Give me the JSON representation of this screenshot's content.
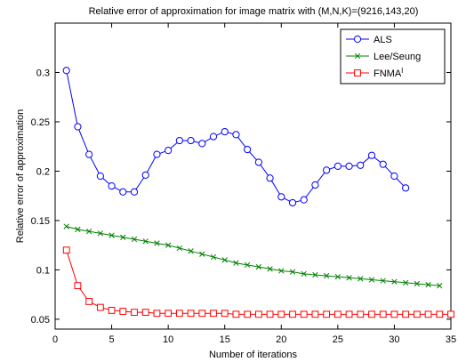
{
  "chart_data": {
    "type": "line",
    "title": "Relative error of approximation for image matrix with (M,N,K)=(9216,143,20)",
    "xlabel": "Number of iterations",
    "ylabel": "Relative error of approximation",
    "xlim": [
      0,
      35
    ],
    "ylim": [
      0.04,
      0.35
    ],
    "xticks": [
      0,
      5,
      10,
      15,
      20,
      25,
      30,
      35
    ],
    "yticks": [
      0.05,
      0.1,
      0.15,
      0.2,
      0.25,
      0.3
    ],
    "ytick_labels": [
      "0.05",
      "0.1",
      "0.15",
      "0.2",
      "0.25",
      "0.3"
    ],
    "grid": false,
    "legend_position": "top-right",
    "series": [
      {
        "name": "ALS",
        "color": "#0000ff",
        "marker": "circle",
        "x": [
          1,
          2,
          3,
          4,
          5,
          6,
          7,
          8,
          9,
          10,
          11,
          12,
          13,
          14,
          15,
          16,
          17,
          18,
          19,
          20,
          21,
          22,
          23,
          24,
          25,
          26,
          27,
          28,
          29,
          30,
          31
        ],
        "y": [
          0.302,
          0.245,
          0.217,
          0.195,
          0.185,
          0.179,
          0.179,
          0.196,
          0.217,
          0.221,
          0.231,
          0.231,
          0.228,
          0.235,
          0.24,
          0.237,
          0.222,
          0.209,
          0.193,
          0.174,
          0.168,
          0.171,
          0.186,
          0.201,
          0.205,
          0.205,
          0.206,
          0.216,
          0.207,
          0.195,
          0.183
        ]
      },
      {
        "name": "Lee/Seung",
        "color": "#008000",
        "marker": "x",
        "x": [
          1,
          2,
          3,
          4,
          5,
          6,
          7,
          8,
          9,
          10,
          11,
          12,
          13,
          14,
          15,
          16,
          17,
          18,
          19,
          20,
          21,
          22,
          23,
          24,
          25,
          26,
          27,
          28,
          29,
          30,
          31,
          32,
          33,
          34
        ],
        "y": [
          0.144,
          0.141,
          0.139,
          0.137,
          0.135,
          0.133,
          0.131,
          0.129,
          0.127,
          0.125,
          0.122,
          0.119,
          0.116,
          0.113,
          0.11,
          0.107,
          0.105,
          0.103,
          0.101,
          0.099,
          0.098,
          0.096,
          0.095,
          0.094,
          0.093,
          0.092,
          0.091,
          0.09,
          0.089,
          0.088,
          0.087,
          0.086,
          0.085,
          0.084
        ]
      },
      {
        "name": "FNMA",
        "name_superscript": "I",
        "color": "#ff0000",
        "marker": "square",
        "x": [
          1,
          2,
          3,
          4,
          5,
          6,
          7,
          8,
          9,
          10,
          11,
          12,
          13,
          14,
          15,
          16,
          17,
          18,
          19,
          20,
          21,
          22,
          23,
          24,
          25,
          26,
          27,
          28,
          29,
          30,
          31,
          32,
          33,
          34,
          35
        ],
        "y": [
          0.12,
          0.084,
          0.068,
          0.062,
          0.059,
          0.058,
          0.057,
          0.057,
          0.056,
          0.056,
          0.056,
          0.056,
          0.056,
          0.056,
          0.056,
          0.055,
          0.055,
          0.055,
          0.055,
          0.055,
          0.055,
          0.055,
          0.055,
          0.055,
          0.055,
          0.055,
          0.055,
          0.055,
          0.055,
          0.055,
          0.055,
          0.055,
          0.055,
          0.055,
          0.055
        ]
      }
    ]
  }
}
